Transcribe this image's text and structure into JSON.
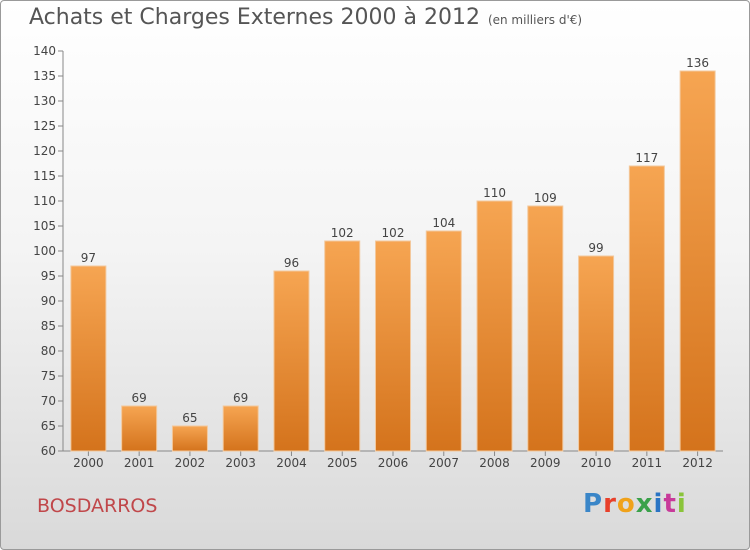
{
  "header": {
    "title": "Achats et Charges Externes 2000 à 2012",
    "unit_note": "(en milliers d'€)"
  },
  "footer": {
    "commune": "BOSDARROS",
    "brand_letters": [
      "P",
      "r",
      "o",
      "x",
      "i",
      "t",
      "i"
    ],
    "brand_colors": [
      "#3a86c8",
      "#e8402a",
      "#f0a21a",
      "#3aa14a",
      "#2a74c4",
      "#c83a9a",
      "#8ac43a"
    ]
  },
  "colors": {
    "bar_top": "#f6a552",
    "bar_bottom": "#d4731c",
    "axis": "#888888",
    "label": "#444444",
    "commune": "#c0474a"
  },
  "chart_data": {
    "type": "bar",
    "categories": [
      "2000",
      "2001",
      "2002",
      "2003",
      "2004",
      "2005",
      "2006",
      "2007",
      "2008",
      "2009",
      "2010",
      "2011",
      "2012"
    ],
    "values": [
      97,
      69,
      65,
      69,
      96,
      102,
      102,
      104,
      110,
      109,
      99,
      117,
      136
    ],
    "ylim": [
      60,
      140
    ],
    "yticks": [
      60,
      65,
      70,
      75,
      80,
      85,
      90,
      95,
      100,
      105,
      110,
      115,
      120,
      125,
      130,
      135,
      140
    ],
    "grid": false,
    "data_labels": true
  }
}
